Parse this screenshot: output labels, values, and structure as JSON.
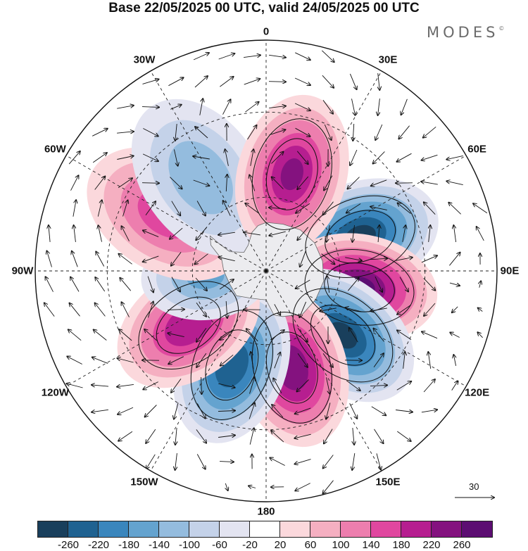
{
  "title": "Base 22/05/2025 00 UTC, valid 24/05/2025 00 UTC",
  "logo": {
    "text": "MODES",
    "mark": "©"
  },
  "longitude_labels": [
    {
      "text": "0",
      "lon": 0
    },
    {
      "text": "30E",
      "lon": 30
    },
    {
      "text": "60E",
      "lon": 60
    },
    {
      "text": "90E",
      "lon": 90
    },
    {
      "text": "120E",
      "lon": 120
    },
    {
      "text": "150E",
      "lon": 150
    },
    {
      "text": "180",
      "lon": 180
    },
    {
      "text": "150W",
      "lon": -150
    },
    {
      "text": "120W",
      "lon": -120
    },
    {
      "text": "90W",
      "lon": -90
    },
    {
      "text": "60W",
      "lon": -60
    },
    {
      "text": "30W",
      "lon": -30
    }
  ],
  "projection": "south polar stereographic",
  "graticule": {
    "meridian_step_deg": 30,
    "parallel_step_deg": 30,
    "style": "dashed"
  },
  "wind_reference": {
    "value": "30",
    "icon": "arrow-right-icon"
  },
  "anomaly_centers": [
    {
      "lon": 70,
      "lat": -50,
      "value": -270
    },
    {
      "lon": 100,
      "lat": -52,
      "value": 270
    },
    {
      "lon": 130,
      "lat": -50,
      "value": -270
    },
    {
      "lon": 165,
      "lat": -50,
      "value": 250
    },
    {
      "lon": -160,
      "lat": -50,
      "value": -250
    },
    {
      "lon": -125,
      "lat": -52,
      "value": 210
    },
    {
      "lon": -95,
      "lat": -65,
      "value": -140
    },
    {
      "lon": -60,
      "lat": -45,
      "value": 160
    },
    {
      "lon": -35,
      "lat": -45,
      "value": -120
    },
    {
      "lon": 15,
      "lat": -50,
      "value": 220
    }
  ],
  "colorbar": {
    "colors": [
      "#193f5c",
      "#1f6291",
      "#3a86bd",
      "#64a3cf",
      "#94bcde",
      "#c4d2e9",
      "#e3e4f1",
      "#ffffff",
      "#fbd8dc",
      "#f5afc1",
      "#ed7eae",
      "#e0479f",
      "#b61e90",
      "#84127f",
      "#5c0d72"
    ],
    "ticks": [
      "-260",
      "-220",
      "-180",
      "-140",
      "-100",
      "-60",
      "-20",
      "20",
      "60",
      "100",
      "140",
      "180",
      "220",
      "260"
    ]
  }
}
